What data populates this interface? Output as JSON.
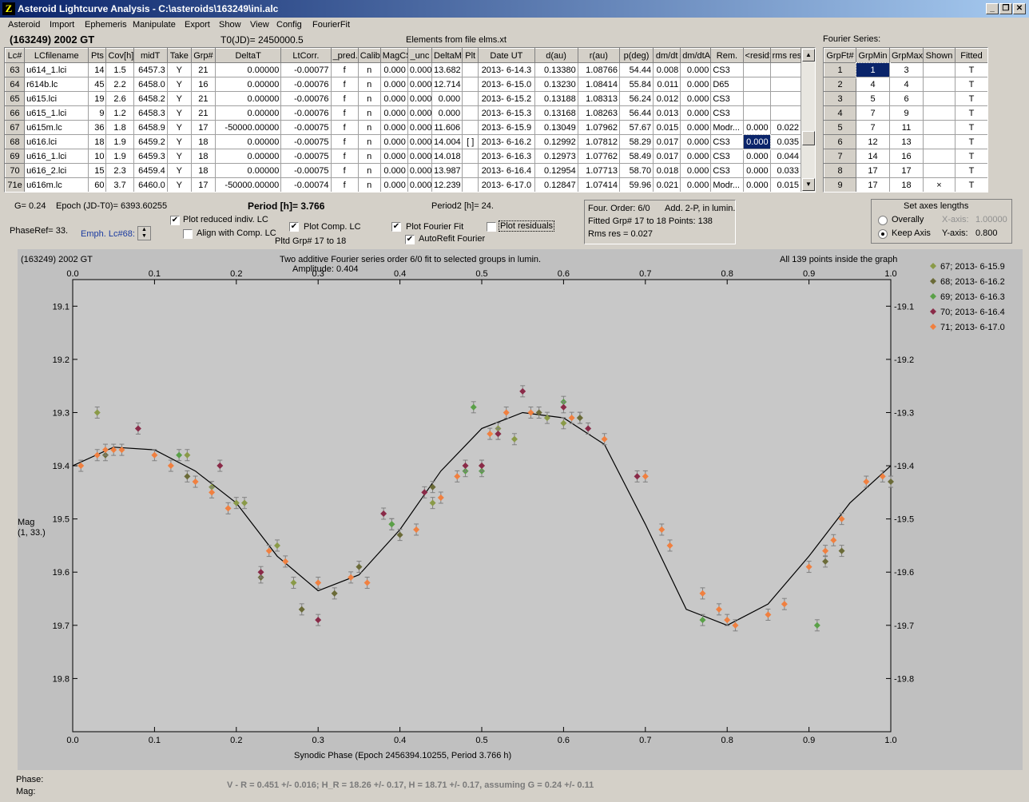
{
  "window": {
    "title": "Asteroid Lightcurve Analysis - C:\\asteroids\\163249\\ini.alc",
    "icon_label": "Z"
  },
  "menu": [
    "Asteroid",
    "Import",
    "Ephemeris",
    "Manipulate",
    "Export",
    "Show",
    "View",
    "Config",
    "FourierFit"
  ],
  "header": {
    "object": "(163249) 2002 GT",
    "t0": "T0(JD)= 2450000.5",
    "elements": "Elements from file elms.xt",
    "fourier_series": "Fourier Series:"
  },
  "lc_table": {
    "columns": [
      "Lc#",
      "LCfilename",
      "Pts",
      "Cov[h]",
      "midT",
      "Take",
      "Grp#",
      "DeltaT",
      "LtCorr.",
      "_pred.",
      "Calib.",
      "MagCS",
      "_unc",
      "DeltaM",
      "Plt",
      "Date UT",
      "d(au)",
      "r(au)",
      "p(deg)",
      "dm/dt",
      "dm/dtA",
      "Rem.",
      "<resid>",
      "rms res"
    ],
    "rows": [
      [
        "63",
        "u614_1.lci",
        "14",
        "1.5",
        "6457.3",
        "Y",
        "21",
        "0.00000",
        "-0.00077",
        "f",
        "n",
        "0.000",
        "0.000",
        "13.682",
        "",
        "2013- 6-14.3",
        "0.13380",
        "1.08766",
        "54.44",
        "0.008",
        "0.000",
        "CS3",
        "",
        ""
      ],
      [
        "64",
        "r614b.lc",
        "45",
        "2.2",
        "6458.0",
        "Y",
        "16",
        "0.00000",
        "-0.00076",
        "f",
        "n",
        "0.000",
        "0.000",
        "12.714",
        "",
        "2013- 6-15.0",
        "0.13230",
        "1.08414",
        "55.84",
        "0.011",
        "0.000",
        "D65",
        "",
        ""
      ],
      [
        "65",
        "u615.lci",
        "19",
        "2.6",
        "6458.2",
        "Y",
        "21",
        "0.00000",
        "-0.00076",
        "f",
        "n",
        "0.000",
        "0.000",
        "0.000",
        "",
        "2013- 6-15.2",
        "0.13188",
        "1.08313",
        "56.24",
        "0.012",
        "0.000",
        "CS3",
        "",
        ""
      ],
      [
        "66",
        "u615_1.lci",
        "9",
        "1.2",
        "6458.3",
        "Y",
        "21",
        "0.00000",
        "-0.00076",
        "f",
        "n",
        "0.000",
        "0.000",
        "0.000",
        "",
        "2013- 6-15.3",
        "0.13168",
        "1.08263",
        "56.44",
        "0.013",
        "0.000",
        "CS3",
        "",
        ""
      ],
      [
        "67",
        "u615m.lc",
        "36",
        "1.8",
        "6458.9",
        "Y",
        "17",
        "-50000.00000",
        "-0.00075",
        "f",
        "n",
        "0.000",
        "0.000",
        "11.606",
        "",
        "2013- 6-15.9",
        "0.13049",
        "1.07962",
        "57.67",
        "0.015",
        "0.000",
        "Modr...",
        "0.000",
        "0.022"
      ],
      [
        "68",
        "u616.lci",
        "18",
        "1.9",
        "6459.2",
        "Y",
        "18",
        "0.00000",
        "-0.00075",
        "f",
        "n",
        "0.000",
        "0.000",
        "14.004",
        "[ ]",
        "2013- 6-16.2",
        "0.12992",
        "1.07812",
        "58.29",
        "0.017",
        "0.000",
        "CS3",
        "0.000",
        "0.035"
      ],
      [
        "69",
        "u616_1.lci",
        "10",
        "1.9",
        "6459.3",
        "Y",
        "18",
        "0.00000",
        "-0.00075",
        "f",
        "n",
        "0.000",
        "0.000",
        "14.018",
        "",
        "2013- 6-16.3",
        "0.12973",
        "1.07762",
        "58.49",
        "0.017",
        "0.000",
        "CS3",
        "0.000",
        "0.044"
      ],
      [
        "70",
        "u616_2.lci",
        "15",
        "2.3",
        "6459.4",
        "Y",
        "18",
        "0.00000",
        "-0.00075",
        "f",
        "n",
        "0.000",
        "0.000",
        "13.987",
        "",
        "2013- 6-16.4",
        "0.12954",
        "1.07713",
        "58.70",
        "0.018",
        "0.000",
        "CS3",
        "0.000",
        "0.033"
      ],
      [
        "71e",
        "u616m.lc",
        "60",
        "3.7",
        "6460.0",
        "Y",
        "17",
        "-50000.00000",
        "-0.00074",
        "f",
        "n",
        "0.000",
        "0.000",
        "12.239",
        "",
        "2013- 6-17.0",
        "0.12847",
        "1.07414",
        "59.96",
        "0.021",
        "0.000",
        "Modr...",
        "0.000",
        "0.015"
      ]
    ]
  },
  "fourier_table": {
    "columns": [
      "GrpFt#",
      "GrpMin",
      "GrpMax",
      "Shown",
      "Fitted"
    ],
    "rows": [
      [
        "1",
        "1",
        "3",
        "",
        "T"
      ],
      [
        "2",
        "4",
        "4",
        "",
        "T"
      ],
      [
        "3",
        "5",
        "6",
        "",
        "T"
      ],
      [
        "4",
        "7",
        "9",
        "",
        "T"
      ],
      [
        "5",
        "7",
        "11",
        "",
        "T"
      ],
      [
        "6",
        "12",
        "13",
        "",
        "T"
      ],
      [
        "7",
        "14",
        "16",
        "",
        "T"
      ],
      [
        "8",
        "17",
        "17",
        "",
        "T"
      ],
      [
        "9",
        "17",
        "18",
        "×",
        "T"
      ]
    ]
  },
  "controls": {
    "g": "G= 0.24",
    "epoch": "Epoch (JD-T0)= 6393.60255",
    "period": "Period [h]= 3.766",
    "period2": "Period2 [h]= 24.",
    "phaseref": "PhaseRef= 33.",
    "emph": "Emph. Lc#68:",
    "plot_reduced": "Plot reduced indiv. LC",
    "align_comp": "Align with Comp. LC",
    "plot_comp": "Plot Comp. LC",
    "pltd_grp": "Pltd Grp#  17 to   18",
    "plot_fourier": "Plot Fourier Fit",
    "autorefit": "AutoRefit Fourier",
    "plot_residuals": "Plot residuals",
    "four_order": "Four. Order:  6/0",
    "add": "Add. 2-P, in lumin.",
    "fitted": "Fitted Grp# 17 to 18 Points: 138",
    "rms": "Rms res     = 0.027",
    "axes_title": "Set axes lengths",
    "overally": "Overally",
    "keep_axis": "Keep Axis",
    "xaxis_label": "X-axis:",
    "xaxis_val": "1.00000",
    "yaxis_label": "Y-axis:",
    "yaxis_val": "0.800"
  },
  "plot": {
    "object": "(163249) 2002 GT",
    "title": "Two additive Fourier series order 6/0 fit to selected groups in lumin.",
    "amplitude": "Amplitude: 0.404",
    "points": "All 139 points inside the graph",
    "ylabel": "Mag",
    "ylabel2": "(1, 33.)",
    "xlabel": "Synodic Phase (Epoch 2456394.10255, Period 3.766 h)",
    "xticks": [
      "0.0",
      "0.1",
      "0.2",
      "0.3",
      "0.4",
      "0.5",
      "0.6",
      "0.7",
      "0.8",
      "0.9",
      "1.0"
    ],
    "yticks": [
      "19.1",
      "19.2",
      "19.3",
      "19.4",
      "19.5",
      "19.6",
      "19.7",
      "19.8"
    ],
    "legend": [
      {
        "label": "67; 2013- 6-15.9",
        "color": "#8a9a48"
      },
      {
        "label": "68; 2013- 6-16.2",
        "color": "#6b6b38"
      },
      {
        "label": "69; 2013- 6-16.3",
        "color": "#5aa048"
      },
      {
        "label": "70; 2013- 6-16.4",
        "color": "#8a2a48"
      },
      {
        "label": "71; 2013- 6-17.0",
        "color": "#f08040"
      }
    ]
  },
  "chart_data": {
    "type": "scatter",
    "title": "Two additive Fourier series order 6/0 fit to selected groups in lumin.",
    "xlabel": "Synodic Phase (Epoch 2456394.10255, Period 3.766 h)",
    "ylabel": "Mag",
    "xlim": [
      0,
      1
    ],
    "ylim": [
      19.9,
      19.05
    ],
    "y_inverted": true,
    "fit_curve": {
      "phase": [
        0,
        0.05,
        0.1,
        0.15,
        0.2,
        0.25,
        0.3,
        0.35,
        0.4,
        0.45,
        0.5,
        0.55,
        0.6,
        0.65,
        0.7,
        0.75,
        0.8,
        0.85,
        0.9,
        0.95,
        1.0
      ],
      "mag": [
        19.4,
        19.365,
        19.37,
        19.41,
        19.47,
        19.57,
        19.635,
        19.605,
        19.52,
        19.41,
        19.33,
        19.3,
        19.31,
        19.36,
        19.51,
        19.67,
        19.7,
        19.66,
        19.57,
        19.47,
        19.4
      ]
    },
    "series": [
      {
        "name": "67; 2013- 6-15.9",
        "points": [
          [
            0.03,
            19.3
          ],
          [
            0.14,
            19.38
          ],
          [
            0.17,
            19.44
          ],
          [
            0.2,
            19.47
          ],
          [
            0.21,
            19.47
          ],
          [
            0.25,
            19.55
          ],
          [
            0.27,
            19.62
          ],
          [
            0.39,
            19.51
          ],
          [
            0.44,
            19.47
          ],
          [
            0.5,
            19.4
          ],
          [
            0.52,
            19.33
          ],
          [
            0.54,
            19.35
          ],
          [
            0.58,
            19.31
          ],
          [
            0.6,
            19.32
          ],
          [
            0.62,
            19.31
          ]
        ]
      },
      {
        "name": "68; 2013- 6-16.2",
        "points": [
          [
            0.04,
            19.38
          ],
          [
            0.14,
            19.42
          ],
          [
            0.23,
            19.61
          ],
          [
            0.28,
            19.67
          ],
          [
            0.32,
            19.64
          ],
          [
            0.35,
            19.59
          ],
          [
            0.4,
            19.53
          ],
          [
            0.44,
            19.44
          ],
          [
            0.52,
            19.34
          ],
          [
            0.57,
            19.3
          ],
          [
            0.62,
            19.31
          ],
          [
            0.92,
            19.58
          ],
          [
            0.94,
            19.56
          ],
          [
            1.0,
            19.43
          ]
        ]
      },
      {
        "name": "69; 2013- 6-16.3",
        "points": [
          [
            0.13,
            19.38
          ],
          [
            0.39,
            19.51
          ],
          [
            0.48,
            19.41
          ],
          [
            0.49,
            19.29
          ],
          [
            0.5,
            19.41
          ],
          [
            0.6,
            19.28
          ],
          [
            0.77,
            19.69
          ],
          [
            0.91,
            19.7
          ]
        ]
      },
      {
        "name": "70; 2013- 6-16.4",
        "points": [
          [
            0.08,
            19.33
          ],
          [
            0.18,
            19.4
          ],
          [
            0.23,
            19.6
          ],
          [
            0.3,
            19.69
          ],
          [
            0.38,
            19.49
          ],
          [
            0.43,
            19.45
          ],
          [
            0.48,
            19.4
          ],
          [
            0.5,
            19.4
          ],
          [
            0.52,
            19.34
          ],
          [
            0.55,
            19.26
          ],
          [
            0.6,
            19.29
          ],
          [
            0.63,
            19.33
          ],
          [
            0.69,
            19.42
          ]
        ]
      },
      {
        "name": "71; 2013- 6-17.0",
        "points": [
          [
            0.01,
            19.4
          ],
          [
            0.03,
            19.38
          ],
          [
            0.04,
            19.37
          ],
          [
            0.05,
            19.37
          ],
          [
            0.06,
            19.37
          ],
          [
            0.1,
            19.38
          ],
          [
            0.12,
            19.4
          ],
          [
            0.15,
            19.43
          ],
          [
            0.17,
            19.45
          ],
          [
            0.19,
            19.48
          ],
          [
            0.24,
            19.56
          ],
          [
            0.26,
            19.58
          ],
          [
            0.3,
            19.62
          ],
          [
            0.34,
            19.61
          ],
          [
            0.36,
            19.62
          ],
          [
            0.42,
            19.52
          ],
          [
            0.45,
            19.46
          ],
          [
            0.47,
            19.42
          ],
          [
            0.51,
            19.34
          ],
          [
            0.53,
            19.3
          ],
          [
            0.56,
            19.3
          ],
          [
            0.61,
            19.31
          ],
          [
            0.65,
            19.35
          ],
          [
            0.7,
            19.42
          ],
          [
            0.72,
            19.52
          ],
          [
            0.73,
            19.55
          ],
          [
            0.77,
            19.64
          ],
          [
            0.79,
            19.67
          ],
          [
            0.8,
            19.69
          ],
          [
            0.81,
            19.7
          ],
          [
            0.85,
            19.68
          ],
          [
            0.87,
            19.66
          ],
          [
            0.9,
            19.59
          ],
          [
            0.92,
            19.56
          ],
          [
            0.93,
            19.54
          ],
          [
            0.94,
            19.5
          ],
          [
            0.97,
            19.43
          ],
          [
            0.99,
            19.42
          ]
        ]
      }
    ]
  },
  "footer": {
    "phase": "Phase:",
    "mag": "Mag:",
    "result": "V - R = 0.451 +/- 0.016; H_R = 18.26 +/- 0.17, H = 18.71 +/- 0.17, assuming G = 0.24 +/- 0.11"
  }
}
